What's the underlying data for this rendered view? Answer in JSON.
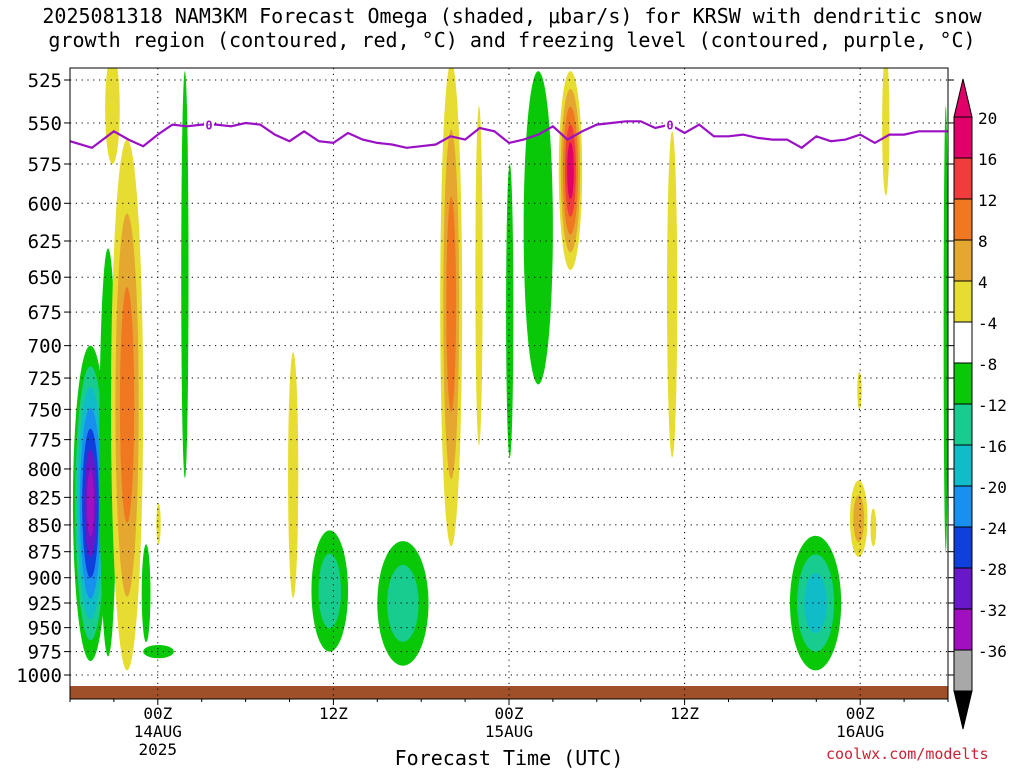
{
  "title": {
    "line1": "2025081318 NAM3KM Forecast Omega (shaded, μbar/s) for KRSW with dendritic snow",
    "line2": "growth region (contoured, red, °C) and freezing level (contoured, purple, °C)"
  },
  "credit": "coolwx.com/modelts",
  "chart_data": {
    "type": "heatmap",
    "title": "2025081318 NAM3KM Forecast Omega (shaded, μbar/s) for KRSW with dendritic snow growth region (contoured, red, °C) and freezing level (contoured, purple, °C)",
    "xlabel": "Forecast Time (UTC)",
    "ylabel": "",
    "x_units": "hours since 2025-08-13 18Z",
    "xlim": [
      0,
      60
    ],
    "y_units": "hPa",
    "y_ticks": [
      525,
      550,
      575,
      600,
      625,
      650,
      675,
      700,
      725,
      750,
      775,
      800,
      825,
      850,
      875,
      900,
      925,
      950,
      975,
      1000
    ],
    "ylim": [
      1000,
      525
    ],
    "grid": true,
    "x_ticks": [
      {
        "x": 6,
        "lines": [
          "00Z",
          "14AUG",
          "2025"
        ]
      },
      {
        "x": 18,
        "lines": [
          "12Z"
        ]
      },
      {
        "x": 30,
        "lines": [
          "00Z",
          "15AUG"
        ]
      },
      {
        "x": 42,
        "lines": [
          "12Z"
        ]
      },
      {
        "x": 54,
        "lines": [
          "00Z",
          "16AUG"
        ]
      }
    ],
    "colorbar": {
      "levels": [
        20,
        16,
        12,
        8,
        4,
        -4,
        -8,
        -12,
        -16,
        -20,
        -24,
        -28,
        -32,
        -36
      ],
      "colors": [
        "#e0006a",
        "#f03c3c",
        "#f07820",
        "#e4a830",
        "#e6dc32",
        "#ffffff",
        "#08c808",
        "#18cc90",
        "#10bcc8",
        "#1890f0",
        "#1040dc",
        "#6818c8",
        "#a010c0",
        "#a8a8a8"
      ]
    },
    "freezing_level": {
      "label": "0",
      "color": "#9a10c4",
      "x": [
        0,
        1.5,
        3,
        4,
        5,
        6,
        7,
        8,
        9,
        10,
        11,
        12,
        13,
        14,
        15,
        16,
        17,
        18,
        19,
        20,
        21,
        22,
        23,
        24,
        25,
        26,
        27,
        28,
        29,
        30,
        31,
        32,
        33,
        34,
        35,
        36,
        37,
        38,
        39,
        40,
        41,
        42,
        43,
        44,
        45,
        46,
        47,
        48,
        49,
        50,
        51,
        52,
        53,
        54,
        55,
        56,
        57,
        58,
        60
      ],
      "y": [
        561,
        565,
        555,
        560,
        564,
        557,
        551,
        552,
        551,
        551,
        552,
        550,
        551,
        557,
        561,
        555,
        561,
        562,
        556,
        560,
        562,
        563,
        565,
        564,
        563,
        558,
        560,
        553,
        555,
        562,
        560,
        557,
        552,
        560,
        555,
        551,
        550,
        549,
        549,
        553,
        551,
        556,
        551,
        558,
        558,
        557,
        559,
        560,
        560,
        565,
        558,
        561,
        560,
        557,
        562,
        557,
        557,
        555,
        555
      ]
    },
    "surface": {
      "color": "#a05028",
      "pressure": 1012
    },
    "features": [
      {
        "sign": "neg",
        "x0": 0.2,
        "x1": 2.6,
        "ptop": 700,
        "pbot": 985,
        "core": -32
      },
      {
        "sign": "neg",
        "x0": 2.0,
        "x1": 3.2,
        "ptop": 630,
        "pbot": 980,
        "core": -8
      },
      {
        "sign": "pos",
        "x0": 2.4,
        "x1": 3.4,
        "ptop": 510,
        "pbot": 575,
        "core": 4
      },
      {
        "sign": "pos",
        "x0": 2.8,
        "x1": 5.0,
        "ptop": 560,
        "pbot": 995,
        "core": 12
      },
      {
        "sign": "neg",
        "x0": 4.9,
        "x1": 5.5,
        "ptop": 868,
        "pbot": 965,
        "core": -8
      },
      {
        "sign": "neg",
        "x0": 5.0,
        "x1": 7.1,
        "ptop": 968,
        "pbot": 982,
        "core": -8
      },
      {
        "sign": "pos",
        "x0": 5.9,
        "x1": 6.2,
        "ptop": 830,
        "pbot": 868,
        "core": 4
      },
      {
        "sign": "neg",
        "x0": 7.6,
        "x1": 8.1,
        "ptop": 520,
        "pbot": 808,
        "core": -8
      },
      {
        "sign": "pos",
        "x0": 14.9,
        "x1": 15.6,
        "ptop": 705,
        "pbot": 920,
        "core": 4
      },
      {
        "sign": "neg",
        "x0": 16.5,
        "x1": 19.0,
        "ptop": 855,
        "pbot": 975,
        "core": -12
      },
      {
        "sign": "neg",
        "x0": 21.0,
        "x1": 24.5,
        "ptop": 865,
        "pbot": 990,
        "core": -12
      },
      {
        "sign": "pos",
        "x0": 25.3,
        "x1": 26.8,
        "ptop": 515,
        "pbot": 870,
        "core": 12
      },
      {
        "sign": "pos",
        "x0": 27.7,
        "x1": 28.2,
        "ptop": 540,
        "pbot": 780,
        "core": 4
      },
      {
        "sign": "neg",
        "x0": 29.8,
        "x1": 30.3,
        "ptop": 575,
        "pbot": 790,
        "core": -8
      },
      {
        "sign": "neg",
        "x0": 31.0,
        "x1": 33.0,
        "ptop": 520,
        "pbot": 730,
        "core": -8
      },
      {
        "sign": "pos",
        "x0": 33.4,
        "x1": 35.0,
        "ptop": 520,
        "pbot": 645,
        "core": 20
      },
      {
        "sign": "pos",
        "x0": 40.8,
        "x1": 41.5,
        "ptop": 555,
        "pbot": 790,
        "core": 4
      },
      {
        "sign": "neg",
        "x0": 49.2,
        "x1": 52.7,
        "ptop": 860,
        "pbot": 995,
        "core": -16
      },
      {
        "sign": "pos",
        "x0": 53.3,
        "x1": 54.5,
        "ptop": 810,
        "pbot": 880,
        "core": 8
      },
      {
        "sign": "pos",
        "x0": 53.8,
        "x1": 54.1,
        "ptop": 720,
        "pbot": 750,
        "core": 4
      },
      {
        "sign": "pos",
        "x0": 54.7,
        "x1": 55.1,
        "ptop": 835,
        "pbot": 870,
        "core": 4
      },
      {
        "sign": "pos",
        "x0": 55.5,
        "x1": 56.0,
        "ptop": 510,
        "pbot": 595,
        "core": 4
      },
      {
        "sign": "neg",
        "x0": 59.7,
        "x1": 60.0,
        "ptop": 540,
        "pbot": 875,
        "core": -8
      }
    ]
  }
}
